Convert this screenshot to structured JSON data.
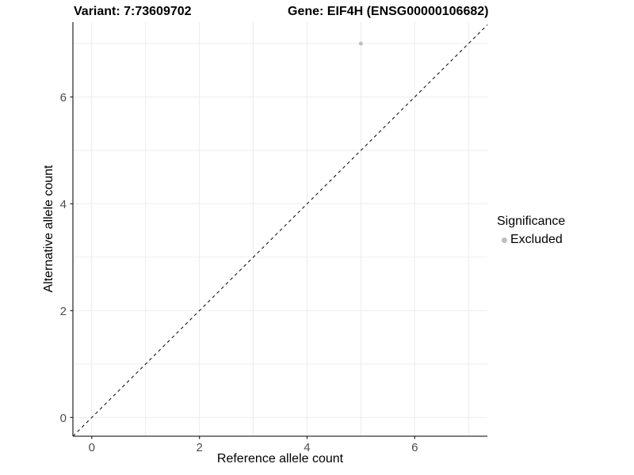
{
  "titles": {
    "variant": "Variant: 7:73609702",
    "gene": "Gene: EIF4H (ENSG00000106682)"
  },
  "colors": {
    "background": "#ffffff",
    "grid": "#ececec",
    "axis": "#333333",
    "tick_label": "#4d4d4d",
    "identity_line": "#000000",
    "excluded_point": "#bebebe"
  },
  "chart_data": {
    "type": "scatter",
    "title": "Variant: 7:73609702        Gene: EIF4H (ENSG00000106682)",
    "xlabel": "Reference allele count",
    "ylabel": "Alternative allele count",
    "xlim": [
      -0.35,
      7.35
    ],
    "ylim": [
      -0.35,
      7.4
    ],
    "x_ticks": [
      0,
      2,
      4,
      6
    ],
    "y_ticks": [
      0,
      2,
      4,
      6
    ],
    "grid_x": [
      0,
      1,
      2,
      3,
      4,
      5,
      6,
      7
    ],
    "grid_y": [
      0,
      1,
      2,
      3,
      4,
      5,
      6,
      7
    ],
    "grid": true,
    "points": [
      {
        "x": 5,
        "y": 7,
        "series": "Excluded",
        "color": "#bebebe"
      }
    ],
    "identity_line": {
      "style": "dashed",
      "equation": "y = x",
      "from": [
        -0.35,
        -0.35
      ],
      "to": [
        7.35,
        7.35
      ]
    },
    "legend": {
      "position": "right",
      "title": "Significance",
      "items": [
        {
          "label": "Excluded",
          "color": "#bebebe"
        }
      ]
    }
  }
}
